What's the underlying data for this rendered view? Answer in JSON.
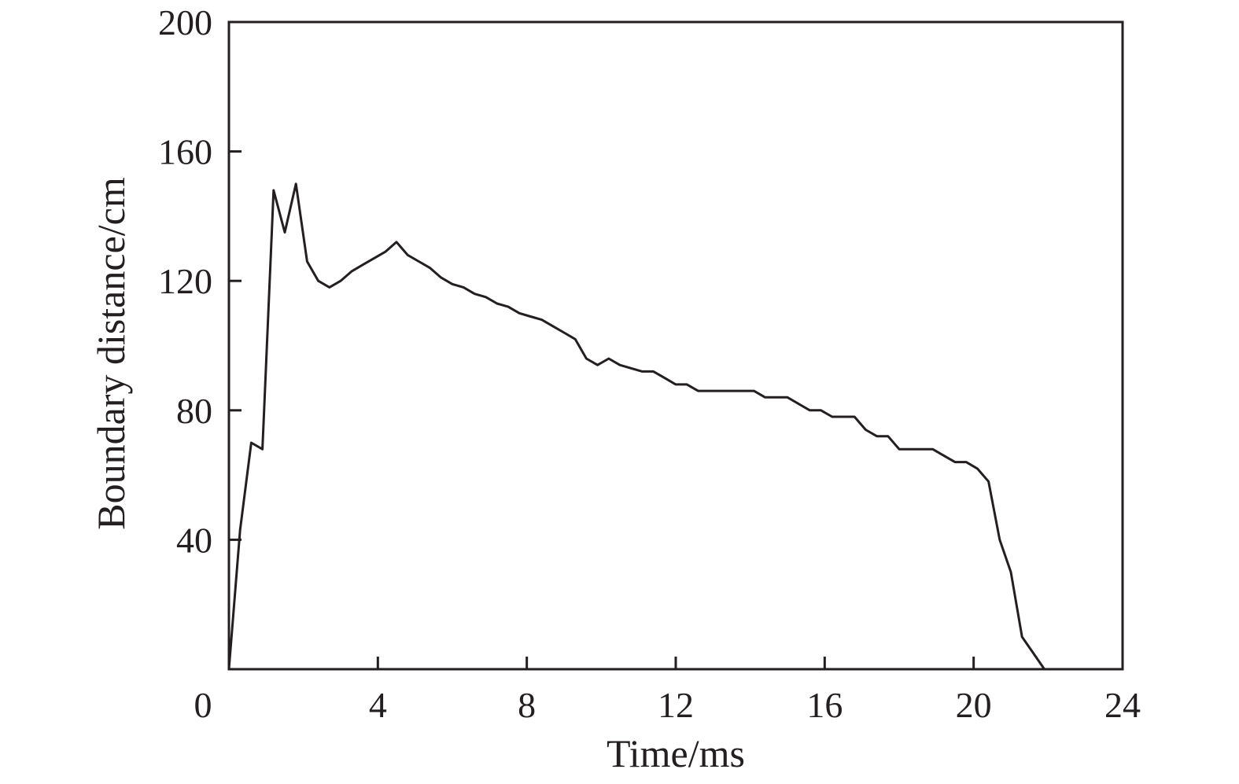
{
  "chart_data": {
    "type": "line",
    "title": "",
    "xlabel": "Time/ms",
    "ylabel": "Boundary distance/cm",
    "xlim": [
      0,
      24
    ],
    "ylim": [
      0,
      200
    ],
    "xticks": [
      0,
      4,
      8,
      12,
      16,
      20,
      24
    ],
    "yticks": [
      40,
      80,
      120,
      160,
      200
    ],
    "grid": false,
    "legend": "none",
    "line_color": "#231f20",
    "series": [
      {
        "x": [
          0,
          0.3,
          0.6,
          0.9,
          1.2,
          1.5,
          1.8,
          2.1,
          2.4,
          2.7,
          3.0,
          3.3,
          3.6,
          4.2,
          4.5,
          4.8,
          5.1,
          5.4,
          5.7,
          6.0,
          6.3,
          6.6,
          6.9,
          7.2,
          7.5,
          7.8,
          8.1,
          8.4,
          8.7,
          9.0,
          9.3,
          9.6,
          9.9,
          10.2,
          10.5,
          10.8,
          11.1,
          11.4,
          11.7,
          12.0,
          12.3,
          12.6,
          12.9,
          13.2,
          13.5,
          13.8,
          14.1,
          14.4,
          14.7,
          15.0,
          15.3,
          15.6,
          15.9,
          16.2,
          16.5,
          16.8,
          17.1,
          17.4,
          17.7,
          18.0,
          18.3,
          18.6,
          18.9,
          19.2,
          19.5,
          19.8,
          20.1,
          20.4,
          20.7,
          21.0,
          21.3,
          21.6,
          21.9
        ],
        "values": [
          0,
          43,
          70,
          68,
          148,
          135,
          150,
          126,
          120,
          118,
          120,
          123,
          125,
          129,
          132,
          128,
          126,
          124,
          121,
          119,
          118,
          116,
          115,
          113,
          112,
          110,
          109,
          108,
          106,
          104,
          102,
          96,
          94,
          96,
          94,
          93,
          92,
          92,
          90,
          88,
          88,
          86,
          86,
          86,
          86,
          86,
          86,
          84,
          84,
          84,
          82,
          80,
          80,
          78,
          78,
          78,
          74,
          72,
          72,
          68,
          68,
          68,
          68,
          66,
          64,
          64,
          62,
          58,
          40,
          30,
          10,
          5,
          0
        ]
      }
    ]
  }
}
